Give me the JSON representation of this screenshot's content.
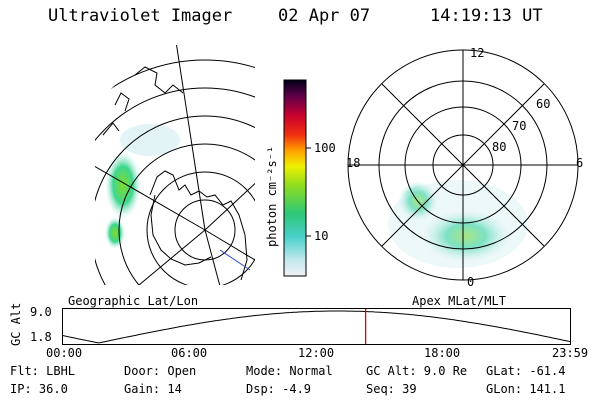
{
  "header": {
    "title": "Ultraviolet Imager",
    "date": "02 Apr 07",
    "time": "14:19:13 UT"
  },
  "colorbar": {
    "unit_label": "photon cm⁻²s⁻¹",
    "ticks": [
      "100",
      "10"
    ],
    "scale": "log"
  },
  "polar": {
    "lat_labels": [
      "60",
      "70",
      "80"
    ],
    "mlt_labels": {
      "top": "12",
      "left": "18",
      "right": "6",
      "bottom": "0"
    }
  },
  "map_titles": {
    "left": "Geographic Lat/Lon",
    "right": "Apex MLat/MLT"
  },
  "altitude_plot": {
    "axis_title": "GC Alt",
    "y_ticks": [
      "9.0",
      "1.8"
    ],
    "x_ticks": [
      "00:00",
      "06:00",
      "12:00",
      "18:00",
      "23:59"
    ],
    "current_time_hours": 14.32,
    "marker_color": "#e00000"
  },
  "footer": {
    "filter": "Flt: LBHL",
    "door": "Door: Open",
    "mode": "Mode: Normal",
    "gc_alt": "GC Alt: 9.0 Re",
    "glat": "GLat: -61.4",
    "ip": "IP: 36.0",
    "gain": "Gain: 14",
    "dsp": "Dsp:    -4.9",
    "seq": "Seq: 39",
    "glon": "GLon: 141.1"
  }
}
